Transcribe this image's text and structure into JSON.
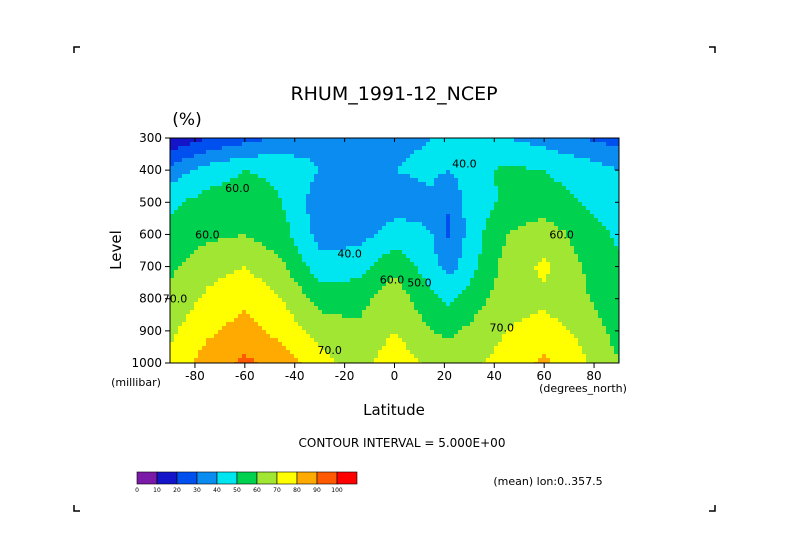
{
  "chart_data": {
    "type": "heatmap",
    "title": "RHUM_1991-12_NCEP",
    "units": "(%)",
    "xlabel": "Latitude",
    "ylabel": "Level",
    "x_unit_label": "(degrees_north)",
    "y_unit_label": "(millibar)",
    "xlim": [
      -90,
      90
    ],
    "ylim": [
      1000,
      300
    ],
    "x_ticks": [
      -80,
      -60,
      -40,
      -20,
      0,
      20,
      40,
      60,
      80
    ],
    "x_tick_labels": [
      "-80",
      "-60",
      "-40",
      "-20",
      "0",
      "20",
      "40",
      "60",
      "80"
    ],
    "y_ticks": [
      300,
      400,
      500,
      600,
      700,
      800,
      900,
      1000
    ],
    "y_tick_labels": [
      "300",
      "400",
      "500",
      "600",
      "700",
      "800",
      "900",
      "1000"
    ],
    "contour_labels": [
      {
        "text": "60.0",
        "lat": -63,
        "level": 455
      },
      {
        "text": "40.0",
        "lat": 28,
        "level": 380
      },
      {
        "text": "60.0",
        "lat": -75,
        "level": 600
      },
      {
        "text": "40.0",
        "lat": -18,
        "level": 660
      },
      {
        "text": "60.0",
        "lat": -1,
        "level": 740
      },
      {
        "text": "50.0",
        "lat": 10,
        "level": 750
      },
      {
        "text": "70.0",
        "lat": -88,
        "level": 800
      },
      {
        "text": "70.0",
        "lat": -26,
        "level": 960
      },
      {
        "text": "70.0",
        "lat": 43,
        "level": 890
      },
      {
        "text": "60.0",
        "lat": 67,
        "level": 600
      }
    ],
    "contour_interval_text": "CONTOUR INTERVAL = 5.000E+00",
    "averaging_text": "(mean) lon:0..357.5",
    "colorbar": {
      "ticks": [
        "0",
        "10",
        "20",
        "30",
        "40",
        "50",
        "60",
        "70",
        "80",
        "90",
        "100"
      ],
      "colors": [
        "#7a1aa6",
        "#1414c8",
        "#0050f0",
        "#0a8cf0",
        "#00e6f0",
        "#00d250",
        "#a0e632",
        "#ffff00",
        "#ffaa00",
        "#ff5a00",
        "#ff0000"
      ]
    },
    "latitudes": [
      -90,
      -75,
      -60,
      -45,
      -30,
      -15,
      0,
      15,
      22,
      30,
      45,
      60,
      75,
      90
    ],
    "levels": [
      1000,
      900,
      800,
      700,
      600,
      500,
      400,
      300
    ],
    "values": [
      [
        72,
        85,
        92,
        86,
        74,
        66,
        76,
        68,
        66,
        68,
        74,
        82,
        72,
        60
      ],
      [
        68,
        78,
        84,
        76,
        66,
        62,
        70,
        60,
        58,
        62,
        70,
        74,
        68,
        56
      ],
      [
        63,
        72,
        78,
        70,
        56,
        56,
        66,
        52,
        48,
        54,
        66,
        68,
        62,
        52
      ],
      [
        58,
        66,
        70,
        62,
        44,
        46,
        58,
        44,
        36,
        46,
        64,
        72,
        60,
        52
      ],
      [
        52,
        58,
        60,
        54,
        36,
        36,
        44,
        40,
        28,
        44,
        60,
        66,
        56,
        48
      ],
      [
        48,
        54,
        56,
        50,
        34,
        32,
        36,
        38,
        30,
        44,
        52,
        54,
        50,
        44
      ],
      [
        34,
        44,
        50,
        48,
        40,
        38,
        40,
        42,
        40,
        46,
        52,
        50,
        46,
        40
      ],
      [
        10,
        20,
        26,
        32,
        36,
        38,
        38,
        40,
        40,
        44,
        40,
        36,
        30,
        26
      ]
    ]
  },
  "corner_marks": {
    "color": "#000000"
  }
}
